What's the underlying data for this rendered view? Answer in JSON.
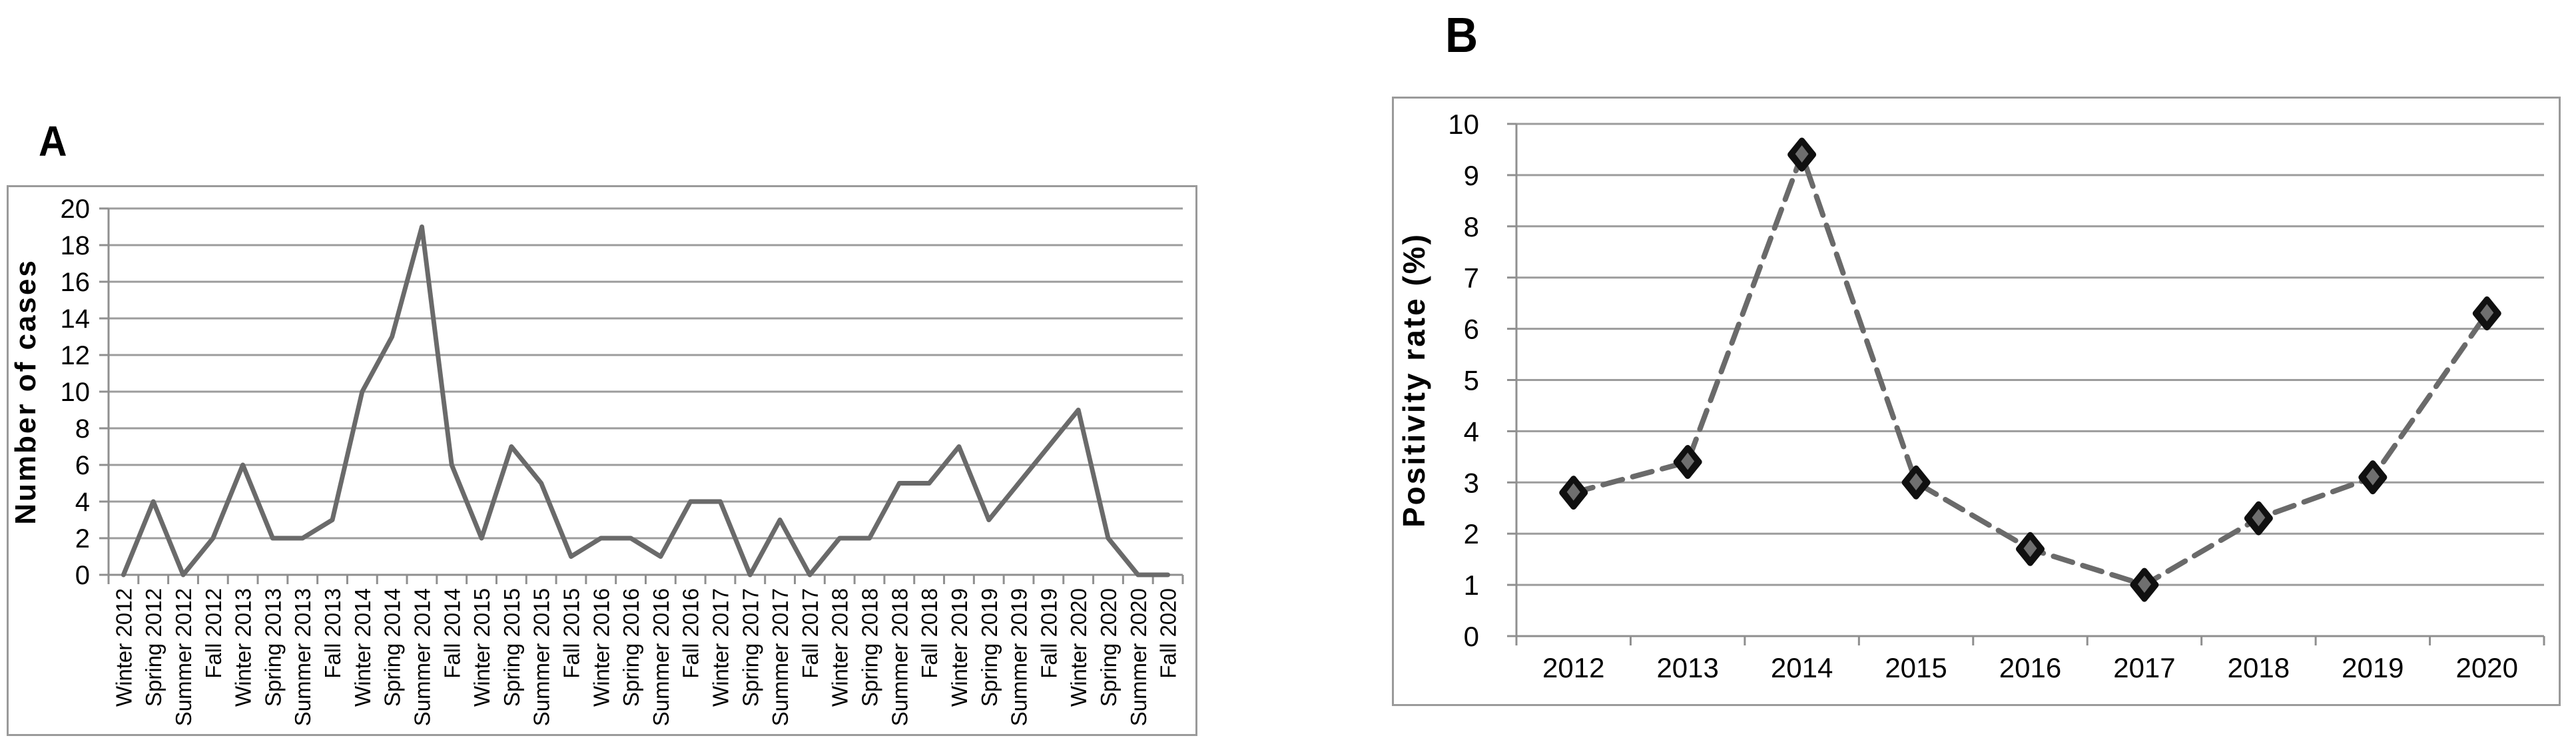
{
  "page": {
    "background": "#ffffff"
  },
  "panels": [
    {
      "id": "A",
      "label": "A"
    },
    {
      "id": "B",
      "label": "B"
    }
  ],
  "chart_data": [
    {
      "panel": "A",
      "type": "line",
      "title": "",
      "xlabel": "",
      "ylabel": "Number of cases",
      "categories": [
        "Winter 2012",
        "Spring 2012",
        "Summer 2012",
        "Fall 2012",
        "Winter 2013",
        "Spring 2013",
        "Summer 2013",
        "Fall 2013",
        "Winter 2014",
        "Spring 2014",
        "Summer 2014",
        "Fall 2014",
        "Winter 2015",
        "Spring 2015",
        "Summer 2015",
        "Fall 2015",
        "Winter 2016",
        "Spring 2016",
        "Summer 2016",
        "Fall 2016",
        "Winter 2017",
        "Spring 2017",
        "Summer 2017",
        "Fall 2017",
        "Winter 2018",
        "Spring 2018",
        "Summer 2018",
        "Fall 2018",
        "Winter 2019",
        "Spring 2019",
        "Summer 2019",
        "Fall 2019",
        "Winter 2020",
        "Spring 2020",
        "Summer 2020",
        "Fall 2020"
      ],
      "values": [
        0,
        4,
        0,
        2,
        6,
        2,
        2,
        3,
        10,
        13,
        19,
        6,
        2,
        7,
        5,
        1,
        2,
        2,
        1,
        4,
        4,
        0,
        3,
        0,
        2,
        2,
        5,
        5,
        7,
        3,
        5,
        7,
        9,
        2,
        0,
        0
      ],
      "ylim": [
        0,
        20
      ],
      "yticks": [
        0,
        2,
        4,
        6,
        8,
        10,
        12,
        14,
        16,
        18,
        20
      ],
      "grid": "horizontal",
      "legend": "none",
      "line_style": "solid",
      "marker": "none",
      "colors": {
        "line": "#6a6a6a",
        "grid": "#9c9c9c",
        "axis": "#8f8f8f",
        "text": "#000000",
        "border": "#9a9a9a"
      }
    },
    {
      "panel": "B",
      "type": "line",
      "title": "",
      "xlabel": "",
      "ylabel": "Positivity rate (%)",
      "categories": [
        "2012",
        "2013",
        "2014",
        "2015",
        "2016",
        "2017",
        "2018",
        "2019",
        "2020"
      ],
      "values": [
        2.8,
        3.4,
        9.4,
        3.0,
        1.7,
        1.0,
        2.3,
        3.1,
        6.3
      ],
      "ylim": [
        0,
        10
      ],
      "yticks": [
        0,
        1,
        2,
        3,
        4,
        5,
        6,
        7,
        8,
        9,
        10
      ],
      "grid": "horizontal",
      "legend": "none",
      "line_style": "dashed",
      "marker": "diamond",
      "colors": {
        "line": "#6a6a6a",
        "grid": "#9c9c9c",
        "axis": "#8f8f8f",
        "text": "#000000",
        "border": "#9a9a9a",
        "marker": "#101010",
        "marker_inner": "#6f6f6f"
      }
    }
  ]
}
